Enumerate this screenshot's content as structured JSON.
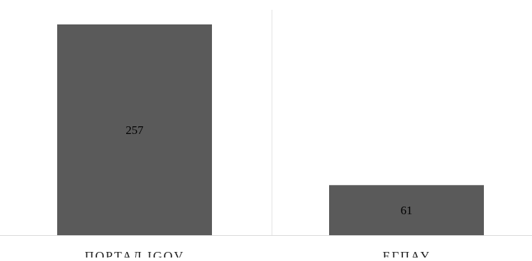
{
  "chart_data": {
    "type": "bar",
    "categories": [
      "ПОРТАЛ IGOV",
      "ЕГПАУ"
    ],
    "values": [
      257,
      61
    ],
    "data_labels": [
      "257",
      "61"
    ],
    "title": "",
    "xlabel": "",
    "ylabel": "",
    "ylim": [
      0,
      270
    ],
    "grid": false,
    "legend": "none",
    "colors": {
      "bar": "#5a5a5a",
      "divider": "#e0e0e0",
      "baseline": "#d9d9d9"
    }
  }
}
